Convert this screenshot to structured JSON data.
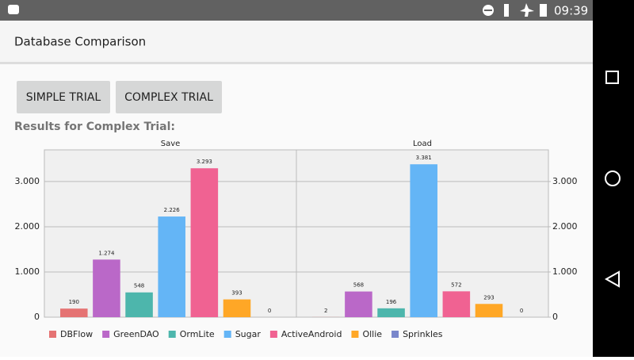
{
  "status_bar": {
    "time": "09:39"
  },
  "app_bar": {
    "title": "Database Comparison"
  },
  "buttons": [
    "SIMPLE TRIAL",
    "COMPLEX TRIAL"
  ],
  "results_label": "Results for Complex Trial:",
  "chart_data": {
    "type": "bar",
    "categories": [
      "Save",
      "Load"
    ],
    "series": [
      {
        "name": "DBFlow",
        "color": "#e57373",
        "values": [
          190,
          2
        ],
        "value_labels": [
          "190",
          "2"
        ]
      },
      {
        "name": "GreenDAO",
        "color": "#ba68c8",
        "values": [
          1274,
          568
        ],
        "value_labels": [
          "1.274",
          "568"
        ]
      },
      {
        "name": "OrmLite",
        "color": "#4db6ac",
        "values": [
          548,
          196
        ],
        "value_labels": [
          "548",
          "196"
        ]
      },
      {
        "name": "Sugar",
        "color": "#64b5f6",
        "values": [
          2226,
          3381
        ],
        "value_labels": [
          "2.226",
          "3.381"
        ]
      },
      {
        "name": "ActiveAndroid",
        "color": "#f06292",
        "values": [
          3293,
          572
        ],
        "value_labels": [
          "3.293",
          "572"
        ]
      },
      {
        "name": "Ollie",
        "color": "#ffa726",
        "values": [
          393,
          293
        ],
        "value_labels": [
          "393",
          "293"
        ]
      },
      {
        "name": "Sprinkles",
        "color": "#7986cb",
        "values": [
          0,
          0
        ],
        "value_labels": [
          "0",
          "0"
        ]
      }
    ],
    "ylim": [
      0,
      3700
    ],
    "yticks": [
      0,
      {
        "value": 1000,
        "label": "1.000"
      },
      {
        "value": 2000,
        "label": "2.000"
      },
      {
        "value": 3000,
        "label": "3.000"
      }
    ],
    "y2lim": [
      0,
      3700
    ],
    "y2ticks": [
      0,
      {
        "value": 1000,
        "label": "1.000"
      },
      {
        "value": 2000,
        "label": "2.000"
      },
      {
        "value": 3000,
        "label": "3.000"
      }
    ],
    "grid": true,
    "legend": "bottom-left"
  }
}
